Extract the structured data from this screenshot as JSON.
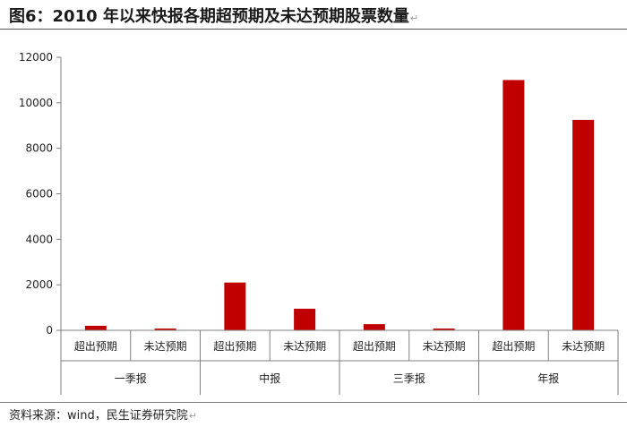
{
  "title": "图6：2010 年以来快报各期超预期及未达预期股票数量",
  "source": "资料来源：wind，民生证券研究院",
  "return_mark": "↵",
  "colors": {
    "bar": "#c00000",
    "axis": "#7f7f7f",
    "text": "#222222"
  },
  "chart_data": {
    "type": "bar",
    "categories": [
      "超出预期",
      "未达预期",
      "超出预期",
      "未达预期",
      "超出预期",
      "未达预期",
      "超出预期",
      "未达预期"
    ],
    "groups": [
      {
        "label": "一季报",
        "categories": [
          "超出预期",
          "未达预期"
        ]
      },
      {
        "label": "中报",
        "categories": [
          "超出预期",
          "未达预期"
        ]
      },
      {
        "label": "三季报",
        "categories": [
          "超出预期",
          "未达预期"
        ]
      },
      {
        "label": "年报",
        "categories": [
          "超出预期",
          "未达预期"
        ]
      }
    ],
    "values": [
      200,
      80,
      2100,
      950,
      270,
      80,
      11000,
      9250
    ],
    "ylim": [
      0,
      12000
    ],
    "yticks": [
      0,
      2000,
      4000,
      6000,
      8000,
      10000,
      12000
    ],
    "grid": false,
    "legend": "none"
  }
}
